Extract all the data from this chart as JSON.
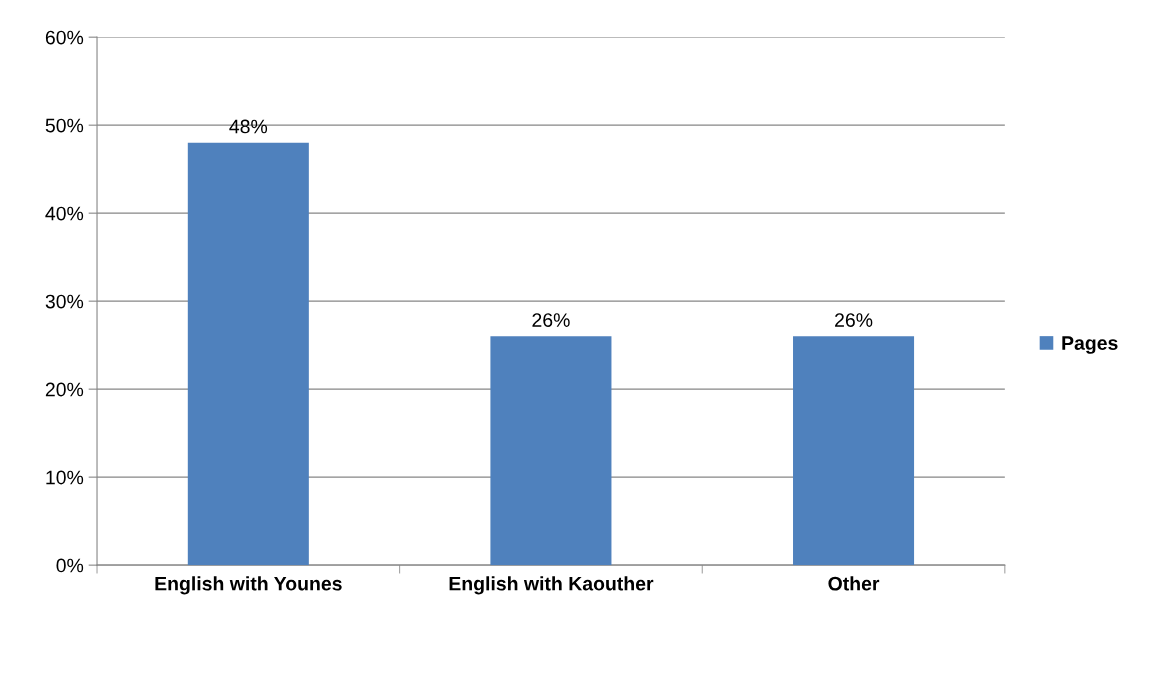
{
  "chart_data": {
    "type": "bar",
    "categories": [
      "English with Younes",
      "English with Kaouther",
      "Other"
    ],
    "series": [
      {
        "name": "Pages",
        "color": "#4f81bd",
        "values": [
          48,
          26,
          26
        ],
        "value_labels": [
          "48%",
          "26%",
          "26%"
        ]
      }
    ],
    "ylim": [
      0,
      60
    ],
    "yticks": [
      {
        "value": 0,
        "label": "0%"
      },
      {
        "value": 10,
        "label": "10%"
      },
      {
        "value": 20,
        "label": "20%"
      },
      {
        "value": 30,
        "label": "30%"
      },
      {
        "value": 40,
        "label": "40%"
      },
      {
        "value": 50,
        "label": "50%"
      },
      {
        "value": 60,
        "label": "60%"
      }
    ],
    "grid": "y",
    "legend": "right"
  }
}
